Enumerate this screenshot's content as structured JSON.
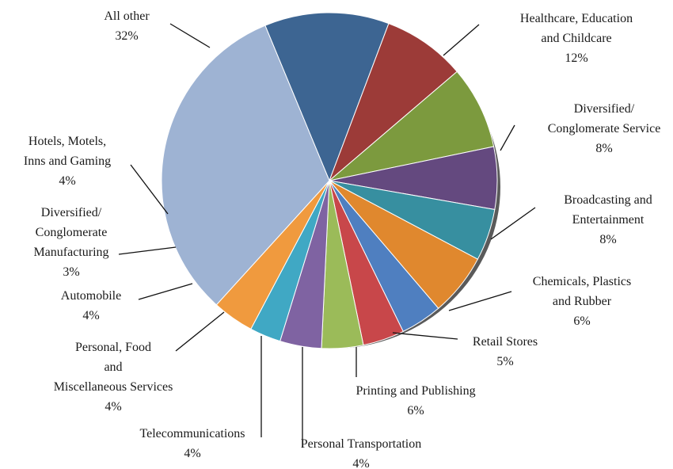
{
  "chart_data": {
    "type": "pie",
    "title": "",
    "slices": [
      {
        "label": "Healthcare, Education and Childcare",
        "lines": [
          "Healthcare, Education",
          "and Childcare"
        ],
        "pct_label": "12%",
        "value": 12,
        "color": "#3d6592"
      },
      {
        "label": "Diversified/ Conglomerate Service",
        "lines": [
          "Diversified/",
          "Conglomerate Service"
        ],
        "pct_label": "8%",
        "value": 8,
        "color": "#9c3b38"
      },
      {
        "label": "Broadcasting and Entertainment",
        "lines": [
          "Broadcasting and",
          "Entertainment"
        ],
        "pct_label": "8%",
        "value": 8,
        "color": "#7c9a3e"
      },
      {
        "label": "Chemicals, Plastics and Rubber",
        "lines": [
          "Chemicals, Plastics",
          "and Rubber"
        ],
        "pct_label": "6%",
        "value": 6,
        "color": "#64497f"
      },
      {
        "label": "Retail Stores",
        "lines": [
          "Retail Stores"
        ],
        "pct_label": "5%",
        "value": 5,
        "color": "#378fa0"
      },
      {
        "label": "Printing and Publishing",
        "lines": [
          "Printing and Publishing"
        ],
        "pct_label": "6%",
        "value": 6,
        "color": "#e0882e"
      },
      {
        "label": "Personal Transportation",
        "lines": [
          "Personal Transportation"
        ],
        "pct_label": "4%",
        "value": 4,
        "color": "#4f7fc0"
      },
      {
        "label": "Telecommunications",
        "lines": [
          "Telecommunications"
        ],
        "pct_label": "4%",
        "value": 4,
        "color": "#c8474a"
      },
      {
        "label": "Personal, Food and Miscellaneous Services",
        "lines": [
          "Personal, Food",
          "and",
          "Miscellaneous Services"
        ],
        "pct_label": "4%",
        "value": 4,
        "color": "#9bbb59"
      },
      {
        "label": "Automobile",
        "lines": [
          "Automobile"
        ],
        "pct_label": "4%",
        "value": 4,
        "color": "#7f63a2"
      },
      {
        "label": "Diversified/ Conglomerate Manufacturing",
        "lines": [
          "Diversified/",
          "Conglomerate",
          "Manufacturing"
        ],
        "pct_label": "3%",
        "value": 3,
        "color": "#40a8c4"
      },
      {
        "label": "Hotels, Motels, Inns and Gaming",
        "lines": [
          "Hotels, Motels,",
          "Inns and Gaming"
        ],
        "pct_label": "4%",
        "value": 4,
        "color": "#f09a3e"
      },
      {
        "label": "All other",
        "lines": [
          "All other"
        ],
        "pct_label": "32%",
        "value": 32,
        "color": "#9eb3d3"
      }
    ]
  }
}
